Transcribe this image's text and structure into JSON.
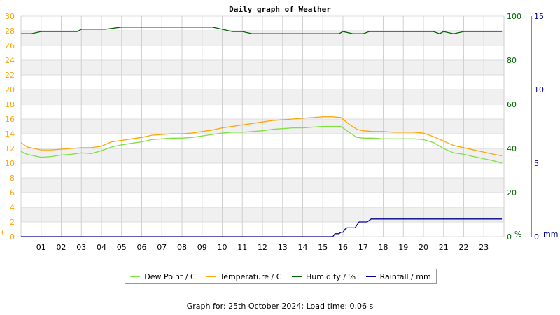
{
  "chart_data": {
    "type": "line",
    "title": "Daily graph of Weather",
    "x_ticks": [
      "01",
      "02",
      "03",
      "04",
      "05",
      "06",
      "07",
      "08",
      "09",
      "10",
      "11",
      "12",
      "13",
      "14",
      "15",
      "16",
      "17",
      "18",
      "19",
      "20",
      "21",
      "22",
      "23"
    ],
    "x_range_hours": [
      0,
      24
    ],
    "grid": true,
    "legend_position": "bottom",
    "axes": {
      "left": {
        "unit": "C",
        "ylim": [
          0,
          30
        ],
        "ticks": [
          0,
          2,
          4,
          6,
          8,
          10,
          12,
          14,
          16,
          18,
          20,
          22,
          24,
          26,
          28,
          30
        ],
        "color": "#ffa500"
      },
      "right1": {
        "unit": "%",
        "ylim": [
          0,
          100
        ],
        "ticks": [
          0,
          20,
          40,
          60,
          80,
          100
        ],
        "color": "#006400"
      },
      "right2": {
        "unit": "mm",
        "ylim": [
          0,
          15
        ],
        "ticks": [
          0,
          5,
          10,
          15
        ],
        "color": "#00008b"
      }
    },
    "series": [
      {
        "name": "Dew Point / C",
        "axis": "left",
        "color": "#7fe040",
        "x": [
          0,
          0.3,
          1,
          1.5,
          2,
          2.5,
          3,
          3.5,
          4,
          4.5,
          5,
          5.5,
          6,
          6.5,
          7,
          7.5,
          8,
          8.5,
          9,
          9.5,
          10,
          10.5,
          11,
          11.5,
          12,
          12.5,
          13,
          13.5,
          14,
          14.5,
          15,
          15.5,
          15.9,
          16.3,
          16.7,
          17,
          17.5,
          18,
          18.5,
          19,
          19.5,
          20,
          20.5,
          21,
          21.5,
          22,
          22.5,
          23,
          23.5,
          23.9
        ],
        "values": [
          11.6,
          11.2,
          10.8,
          10.9,
          11.1,
          11.2,
          11.4,
          11.3,
          11.7,
          12.2,
          12.5,
          12.7,
          12.9,
          13.2,
          13.3,
          13.4,
          13.4,
          13.5,
          13.7,
          13.9,
          14.1,
          14.2,
          14.2,
          14.3,
          14.4,
          14.6,
          14.7,
          14.8,
          14.8,
          14.9,
          15.0,
          15.0,
          15.0,
          14.2,
          13.5,
          13.4,
          13.4,
          13.3,
          13.3,
          13.3,
          13.3,
          13.2,
          12.8,
          12.0,
          11.4,
          11.2,
          10.9,
          10.6,
          10.3,
          10.0
        ]
      },
      {
        "name": "Temperature / C",
        "axis": "left",
        "color": "#ffa500",
        "x": [
          0,
          0.3,
          1,
          1.5,
          2,
          2.5,
          3,
          3.5,
          4,
          4.5,
          5,
          5.5,
          6,
          6.5,
          7,
          7.5,
          8,
          8.5,
          9,
          9.5,
          10,
          10.5,
          11,
          11.5,
          12,
          12.5,
          13,
          13.5,
          14,
          14.5,
          15,
          15.5,
          15.9,
          16.3,
          16.7,
          17,
          17.5,
          18,
          18.5,
          19,
          19.5,
          20,
          20.5,
          21,
          21.5,
          22,
          22.5,
          23,
          23.5,
          23.9
        ],
        "values": [
          12.8,
          12.2,
          11.8,
          11.8,
          11.9,
          12.0,
          12.1,
          12.1,
          12.3,
          12.9,
          13.1,
          13.3,
          13.5,
          13.8,
          13.9,
          14.0,
          14.0,
          14.1,
          14.3,
          14.5,
          14.8,
          15.0,
          15.2,
          15.4,
          15.6,
          15.8,
          15.9,
          16.0,
          16.1,
          16.2,
          16.3,
          16.3,
          16.2,
          15.3,
          14.6,
          14.4,
          14.3,
          14.3,
          14.2,
          14.2,
          14.2,
          14.1,
          13.6,
          13.0,
          12.4,
          12.1,
          11.8,
          11.5,
          11.2,
          11.0
        ]
      },
      {
        "name": "Humidity / %",
        "axis": "right1",
        "color": "#006400",
        "x": [
          0,
          0.5,
          1,
          1.2,
          2,
          2.8,
          3,
          3.3,
          3.5,
          4,
          4.2,
          5,
          6,
          7,
          8,
          8.5,
          9,
          9.5,
          10,
          10.5,
          11,
          11.5,
          12,
          12.5,
          13,
          13.5,
          14,
          14.5,
          15,
          15.5,
          15.8,
          16,
          16.5,
          17,
          17.3,
          17.6,
          18,
          18.5,
          19,
          19.5,
          20,
          20.5,
          20.8,
          21,
          21.5,
          22,
          22.5,
          23,
          23.5,
          23.9
        ],
        "values": [
          92,
          92,
          93,
          93,
          93,
          93,
          94,
          94,
          94,
          94,
          94,
          95,
          95,
          95,
          95,
          95,
          95,
          95,
          94,
          93,
          93,
          92,
          92,
          92,
          92,
          92,
          92,
          92,
          92,
          92,
          92,
          93,
          92,
          92,
          93,
          93,
          93,
          93,
          93,
          93,
          93,
          93,
          92,
          93,
          92,
          93,
          93,
          93,
          93,
          93
        ]
      },
      {
        "name": "Rainfall / mm",
        "axis": "right2",
        "color": "#00008b",
        "x": [
          0,
          15.0,
          15.5,
          15.6,
          15.8,
          15.9,
          16.0,
          16.1,
          16.2,
          16.4,
          16.6,
          16.8,
          17.0,
          17.2,
          17.4,
          17.5,
          17.6,
          18,
          19,
          20,
          21,
          22,
          23,
          23.9
        ],
        "values": [
          0,
          0,
          0,
          0.2,
          0.2,
          0.3,
          0.3,
          0.5,
          0.6,
          0.6,
          0.6,
          1.0,
          1.0,
          1.0,
          1.2,
          1.2,
          1.2,
          1.2,
          1.2,
          1.2,
          1.2,
          1.2,
          1.2,
          1.2
        ]
      }
    ]
  },
  "footer": "Graph for: 25th October 2024; Load time: 0.06 s"
}
